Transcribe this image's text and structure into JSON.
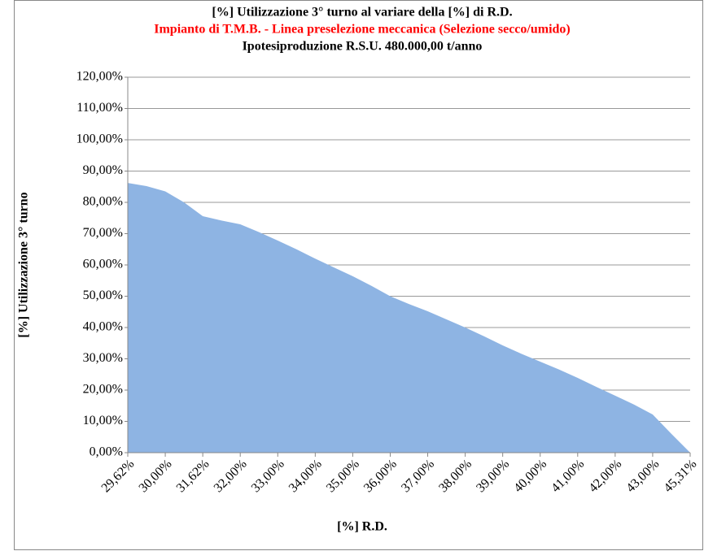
{
  "chart_data": {
    "type": "area",
    "title": "[%] Utilizzazione 3° turno al variare della [%] di R.D.",
    "subtitle": "Impianto di T.M.B. - Linea preselezione meccanica (Selezione secco/umido)",
    "subtitle2": "Ipotesiproduzione R.S.U. 480.000,00 t/anno",
    "xlabel": "[%] R.D.",
    "ylabel": "[%] Utilizzazione 3° turno",
    "color": "#8eb4e3",
    "grid": true,
    "categories": [
      "29,62%",
      null,
      "30,00%",
      null,
      "31,62%",
      null,
      "32,00%",
      null,
      "33,00%",
      null,
      "34,00%",
      null,
      "35,00%",
      null,
      "36,00%",
      null,
      "37,00%",
      null,
      "38,00%",
      null,
      "39,00%",
      null,
      "40,00%",
      null,
      "41,00%",
      null,
      "42,00%",
      null,
      "43,00%",
      null,
      "45,31%"
    ],
    "values": [
      86.2,
      85.2,
      83.5,
      80,
      75.6,
      74.2,
      73,
      70.5,
      67.8,
      65,
      62,
      59.2,
      56.4,
      53.3,
      50,
      47.5,
      45.2,
      42.6,
      40,
      37.2,
      34.3,
      31.6,
      29.1,
      26.6,
      23.9,
      21,
      18.2,
      15.4,
      12.2,
      6,
      0
    ],
    "ylim": [
      0,
      120
    ],
    "yticks": [
      {
        "value": 0,
        "label": "0,00%"
      },
      {
        "value": 10,
        "label": "10,00%"
      },
      {
        "value": 20,
        "label": "20,00%"
      },
      {
        "value": 30,
        "label": "30,00%"
      },
      {
        "value": 40,
        "label": "40,00%"
      },
      {
        "value": 50,
        "label": "50,00%"
      },
      {
        "value": 60,
        "label": "60,00%"
      },
      {
        "value": 70,
        "label": "70,00%"
      },
      {
        "value": 80,
        "label": "80,00%"
      },
      {
        "value": 90,
        "label": "90,00%"
      },
      {
        "value": 100,
        "label": "100,00%"
      },
      {
        "value": 110,
        "label": "110,00%"
      },
      {
        "value": 120,
        "label": "120,00%"
      }
    ]
  }
}
